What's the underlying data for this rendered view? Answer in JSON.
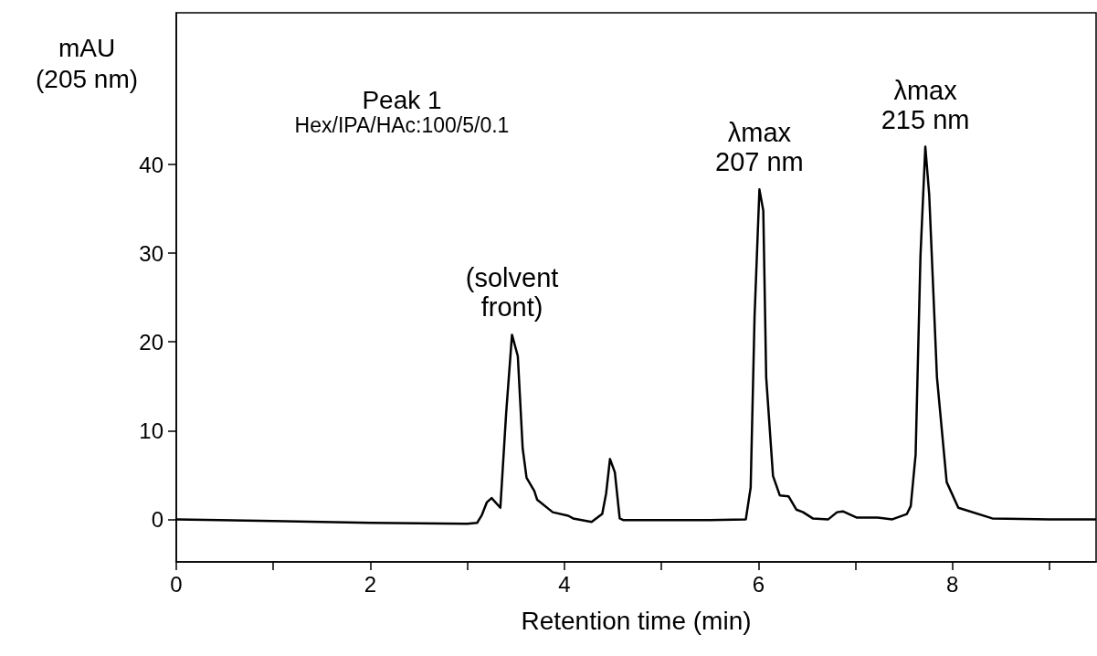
{
  "chart_data": {
    "type": "line",
    "title": "Peak 1",
    "subtitle": "Hex/IPA/HAc:100/5/0.1",
    "xlabel": "Retention time (min)",
    "ylabel": "mAU\n(205 nm)",
    "x": [
      0,
      1,
      2,
      3,
      3.1,
      3.15,
      3.2,
      3.25,
      3.34,
      3.4,
      3.46,
      3.52,
      3.57,
      3.61,
      3.69,
      3.72,
      3.88,
      4.04,
      4.09,
      4.28,
      4.39,
      4.43,
      4.47,
      4.52,
      4.57,
      4.61,
      5,
      5.5,
      5.87,
      5.92,
      5.96,
      6.01,
      6.05,
      6.08,
      6.15,
      6.22,
      6.31,
      6.39,
      6.46,
      6.56,
      6.72,
      6.81,
      6.87,
      7.01,
      7.23,
      7.38,
      7.53,
      7.57,
      7.62,
      7.67,
      7.72,
      7.76,
      7.84,
      7.94,
      8.06,
      8.41,
      9,
      9.47
    ],
    "series": [
      {
        "color": "#000000",
        "values": [
          0,
          -0.2,
          -0.4,
          -0.5,
          -0.4,
          0.5,
          1.9,
          2.4,
          1.3,
          12,
          20.8,
          18.4,
          8.0,
          4.7,
          3.2,
          2.2,
          0.8,
          0.4,
          0.1,
          -0.3,
          0.6,
          2.9,
          6.8,
          5.3,
          0.1,
          -0.1,
          -0.1,
          -0.1,
          0,
          3.6,
          22.8,
          37.2,
          34.8,
          16.0,
          4.9,
          2.7,
          2.6,
          1.1,
          0.8,
          0.1,
          0,
          0.8,
          0.9,
          0.2,
          0.2,
          0,
          0.6,
          1.5,
          7.3,
          29.7,
          42,
          36.6,
          16.0,
          4.2,
          1.3,
          0.1,
          0,
          0
        ]
      }
    ],
    "xlim": [
      0,
      9.48
    ],
    "xticks": [
      0,
      {
        "value": 1,
        "label": null
      },
      2,
      {
        "value": 3,
        "label": null
      },
      4,
      {
        "value": 5,
        "label": null
      },
      6,
      {
        "value": 7,
        "label": null
      },
      8,
      {
        "value": 9,
        "label": null
      }
    ],
    "ylim": [
      -4.8,
      57.1
    ],
    "yticks": [
      0,
      10,
      20,
      30,
      40
    ],
    "grid": false,
    "marker": "none",
    "line_style": "solid",
    "annotations": [
      {
        "text": "(solvent\nfront)",
        "x": 3.46,
        "y": 20.8
      },
      {
        "text": "λmax\n207 nm",
        "x": 6.01,
        "y": 37.2
      },
      {
        "text": "λmax\n215 nm",
        "x": 7.72,
        "y": 42
      }
    ]
  }
}
